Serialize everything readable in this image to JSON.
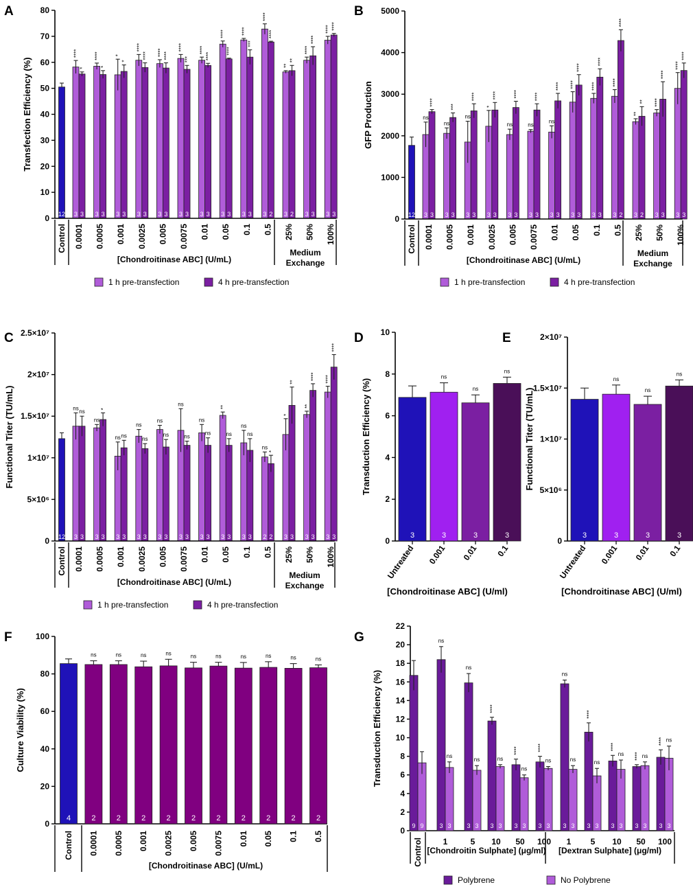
{
  "colors": {
    "control": "#1f12b8",
    "one_h": "#b05cd9",
    "four_h": "#7b1fa2",
    "polybrene": "#6a1b9a",
    "no_polybrene": "#b05cd9",
    "viability": "#800080",
    "d_bars": [
      "#1f12b8",
      "#a020f0",
      "#7b1fa2",
      "#4a0f58"
    ]
  },
  "legend_1h": "1 h pre-transfection",
  "legend_4h": "4 h pre-transfection",
  "chart_data": [
    {
      "id": "A",
      "type": "bar",
      "panel": "A",
      "ylabel": "Transfection Efficiency (%)",
      "ylim": [
        0,
        80
      ],
      "yticks": [
        {
          "v": 0,
          "l": "0"
        },
        {
          "v": 10,
          "l": "10"
        },
        {
          "v": 20,
          "l": "20"
        },
        {
          "v": 30,
          "l": "30"
        },
        {
          "v": 40,
          "l": "40"
        },
        {
          "v": 50,
          "l": "50"
        },
        {
          "v": 60,
          "l": "60"
        },
        {
          "v": 70,
          "l": "70"
        },
        {
          "v": 80,
          "l": "80"
        }
      ],
      "control": {
        "label": "Control",
        "value": 50.5,
        "err": 1.5,
        "n": "12"
      },
      "categories": [
        "0.0001",
        "0.0005",
        "0.001",
        "0.0025",
        "0.005",
        "0.0075",
        "0.01",
        "0.05",
        "0.1",
        "0.5",
        "25%",
        "50%",
        "100%"
      ],
      "series": [
        {
          "name": "1 h pre-transfection",
          "values": [
            58.2,
            58.5,
            55.2,
            60.8,
            59.5,
            61.5,
            60.8,
            67.0,
            68.6,
            72.8,
            56.3,
            60.8,
            68.5
          ],
          "errors": [
            2.5,
            1.2,
            6.0,
            2.2,
            1.5,
            1.5,
            1.2,
            1.2,
            0.6,
            2.0,
            0.5,
            1.2,
            1.5
          ],
          "n": [
            "3",
            "3",
            "3",
            "3",
            "3",
            "3",
            "3",
            "3",
            "3",
            "3",
            "3",
            "3",
            "3"
          ],
          "sig": [
            "****",
            "****",
            "*",
            "****",
            "****",
            "****",
            "****",
            "****",
            "****",
            "****",
            "**",
            "****",
            "****"
          ]
        },
        {
          "name": "4 h pre-transfection",
          "values": [
            55.5,
            55.3,
            56.5,
            58.0,
            57.8,
            57.3,
            58.8,
            61.3,
            62.0,
            67.8,
            56.8,
            62.5,
            70.5
          ],
          "errors": [
            0.8,
            1.5,
            2.5,
            1.8,
            2.0,
            1.5,
            0.8,
            0.3,
            2.8,
            0.3,
            2.0,
            3.5,
            0.6
          ],
          "n": [
            "3",
            "3",
            "3",
            "3",
            "3",
            "3",
            "3",
            "3",
            "3",
            "2",
            "2",
            "3",
            "3"
          ],
          "sig": [
            "*",
            "*",
            "*",
            "****",
            "****",
            "***",
            "****",
            "****",
            "***",
            "****",
            "**",
            "****",
            "****"
          ]
        }
      ],
      "xlabel": "[Chondroitinase ABC] (U/mL)",
      "group_label": [
        "Medium",
        "Exchange"
      ]
    },
    {
      "id": "B",
      "type": "bar",
      "panel": "B",
      "ylabel": "GFP Production",
      "ylim": [
        0,
        5000
      ],
      "yticks": [
        {
          "v": 0,
          "l": "0"
        },
        {
          "v": 1000,
          "l": "1000"
        },
        {
          "v": 2000,
          "l": "2000"
        },
        {
          "v": 3000,
          "l": "3000"
        },
        {
          "v": 4000,
          "l": "4000"
        },
        {
          "v": 5000,
          "l": "5000"
        }
      ],
      "control": {
        "label": "Control",
        "value": 1770,
        "err": 200,
        "n": "12"
      },
      "categories": [
        "0.0001",
        "0.0005",
        "0.001",
        "0.0025",
        "0.005",
        "0.0075",
        "0.01",
        "0.05",
        "0.1",
        "0.5",
        "25%",
        "50%",
        "100%"
      ],
      "series": [
        {
          "name": "1 h pre-transfection",
          "values": [
            2030,
            2060,
            1850,
            2230,
            2030,
            2110,
            2090,
            2810,
            2900,
            2950,
            2340,
            2550,
            3140
          ],
          "errors": [
            300,
            130,
            500,
            380,
            130,
            40,
            150,
            250,
            120,
            160,
            70,
            80,
            380
          ],
          "n": [
            "3",
            "3",
            "3",
            "3",
            "3",
            "3",
            "3",
            "3",
            "3",
            "3",
            "3",
            "3",
            "3"
          ],
          "sig": [
            "ns",
            "ns",
            "ns",
            "*",
            "ns",
            "ns",
            "ns",
            "****",
            "****",
            "****",
            "**",
            "****",
            "****"
          ]
        },
        {
          "name": "4 h pre-transfection",
          "values": [
            2580,
            2440,
            2600,
            2620,
            2680,
            2620,
            2840,
            3220,
            3410,
            4290,
            2470,
            2880,
            3570
          ],
          "errors": [
            50,
            110,
            170,
            180,
            150,
            150,
            180,
            250,
            200,
            260,
            230,
            420,
            180
          ],
          "n": [
            "3",
            "3",
            "3",
            "3",
            "3",
            "3",
            "3",
            "3",
            "3",
            "2",
            "2",
            "3",
            "3"
          ],
          "sig": [
            "****",
            "***",
            "****",
            "****",
            "****",
            "****",
            "****",
            "****",
            "****",
            "****",
            "**",
            "****",
            "****"
          ]
        }
      ],
      "xlabel": "[Chondroitinase ABC] (U/mL)",
      "group_label": [
        "Medium",
        "Exchange"
      ]
    },
    {
      "id": "C",
      "type": "bar",
      "panel": "C",
      "ylabel": "Functional Titer (TU/mL)",
      "ylim": [
        0,
        25000000
      ],
      "yticks": [
        {
          "v": 0,
          "l": "0"
        },
        {
          "v": 5000000,
          "l": "5×10⁶"
        },
        {
          "v": 10000000,
          "l": "1×10⁷"
        },
        {
          "v": 15000000,
          "l": "1.5×10⁷"
        },
        {
          "v": 20000000,
          "l": "2×10⁷"
        },
        {
          "v": 25000000,
          "l": "2.5×10⁷"
        }
      ],
      "control": {
        "label": "Control",
        "value": 12300000,
        "err": 700000,
        "n": "12"
      },
      "categories": [
        "0.0001",
        "0.0005",
        "0.001",
        "0.0025",
        "0.005",
        "0.0075",
        "0.01",
        "0.05",
        "0.1",
        "0.5",
        "25%",
        "50%",
        "100%"
      ],
      "series": [
        {
          "name": "1 h pre-transfection",
          "values": [
            13800000,
            13600000,
            10200000,
            12600000,
            13400000,
            13300000,
            13000000,
            15100000,
            11800000,
            10100000,
            12800000,
            15200000,
            17900000
          ],
          "errors": [
            1600000,
            400000,
            1700000,
            800000,
            500000,
            2600000,
            1000000,
            400000,
            1500000,
            600000,
            1900000,
            400000,
            700000
          ],
          "n": [
            "3",
            "3",
            "3",
            "3",
            "3",
            "3",
            "3",
            "3",
            "3",
            "2",
            "3",
            "3",
            "3"
          ],
          "sig": [
            "ns",
            "ns",
            "ns",
            "ns",
            "ns",
            "ns",
            "ns",
            "**",
            "ns",
            "ns",
            "*",
            "**",
            "****"
          ]
        },
        {
          "name": "4 h pre-transfection",
          "values": [
            13800000,
            14600000,
            11200000,
            11100000,
            11300000,
            11500000,
            11500000,
            11500000,
            10900000,
            9300000,
            16300000,
            18100000,
            20900000
          ],
          "errors": [
            1200000,
            800000,
            900000,
            600000,
            900000,
            500000,
            900000,
            800000,
            1400000,
            1000000,
            2200000,
            800000,
            1500000
          ],
          "n": [
            "3",
            "3",
            "3",
            "3",
            "3",
            "3",
            "3",
            "3",
            "3",
            "2",
            "3",
            "3",
            "3"
          ],
          "sig": [
            "ns",
            "*",
            "ns",
            "ns",
            "ns",
            "ns",
            "ns",
            "ns",
            "ns",
            "*",
            "**",
            "****",
            "****"
          ]
        }
      ],
      "xlabel": "[Chondroitinase ABC] (U/mL)",
      "group_label": [
        "Medium",
        "Exchange"
      ]
    },
    {
      "id": "D",
      "type": "bar",
      "panel": "D",
      "ylabel": "Transduction Efficiency (%)",
      "ylim": [
        0,
        10
      ],
      "yticks": [
        {
          "v": 0,
          "l": "0"
        },
        {
          "v": 2,
          "l": "2"
        },
        {
          "v": 4,
          "l": "4"
        },
        {
          "v": 6,
          "l": "6"
        },
        {
          "v": 8,
          "l": "8"
        },
        {
          "v": 10,
          "l": "10"
        }
      ],
      "categories": [
        "Untreated",
        "0.001",
        "0.01",
        "0.1"
      ],
      "values": [
        6.88,
        7.13,
        6.62,
        7.55
      ],
      "errors": [
        0.55,
        0.45,
        0.38,
        0.3
      ],
      "n": [
        "3",
        "3",
        "3",
        "3"
      ],
      "sig": [
        "",
        "ns",
        "ns",
        "ns"
      ],
      "xlabel": "[Chondroitinase ABC] (U/ml)"
    },
    {
      "id": "E",
      "type": "bar",
      "panel": "E",
      "ylabel": "Functional Titer (TU/mL)",
      "ylim": [
        0,
        20000000
      ],
      "yticks": [
        {
          "v": 0,
          "l": "0"
        },
        {
          "v": 5000000,
          "l": "5×10⁶"
        },
        {
          "v": 10000000,
          "l": "1×10⁷"
        },
        {
          "v": 15000000,
          "l": "1.5×10⁷"
        },
        {
          "v": 20000000,
          "l": "2×10⁷"
        }
      ],
      "categories": [
        "Untreated",
        "0.001",
        "0.01",
        "0.1"
      ],
      "values": [
        13900000,
        14400000,
        13400000,
        15200000
      ],
      "errors": [
        1100000,
        900000,
        800000,
        600000
      ],
      "n": [
        "3",
        "3",
        "3",
        "3"
      ],
      "sig": [
        "",
        "ns",
        "ns",
        "ns"
      ],
      "xlabel": "[Chondroitinase ABC] (U/ml)"
    },
    {
      "id": "F",
      "type": "bar",
      "panel": "F",
      "ylabel": "Culture Viability (%)",
      "ylim": [
        0,
        100
      ],
      "yticks": [
        {
          "v": 0,
          "l": "0"
        },
        {
          "v": 20,
          "l": "20"
        },
        {
          "v": 40,
          "l": "40"
        },
        {
          "v": 60,
          "l": "60"
        },
        {
          "v": 80,
          "l": "80"
        },
        {
          "v": 100,
          "l": "100"
        }
      ],
      "categories": [
        "Control",
        "0.0001",
        "0.0005",
        "0.001",
        "0.0025",
        "0.005",
        "0.0075",
        "0.01",
        "0.05",
        "0.1",
        "0.5"
      ],
      "values": [
        85.5,
        85.0,
        85.0,
        83.8,
        84.3,
        83.2,
        84.2,
        83.1,
        83.5,
        83.0,
        83.3
      ],
      "errors": [
        2.5,
        2.0,
        2.0,
        3.0,
        3.5,
        3.0,
        2.0,
        3.0,
        3.0,
        2.5,
        1.5
      ],
      "n": [
        "4",
        "2",
        "2",
        "2",
        "2",
        "2",
        "2",
        "2",
        "2",
        "2",
        "2"
      ],
      "sig": [
        "",
        "ns",
        "ns",
        "ns",
        "ns",
        "ns",
        "ns",
        "ns",
        "ns",
        "ns",
        "ns"
      ],
      "xlabel": "[Chondroitinase ABC] (U/mL)"
    },
    {
      "id": "G",
      "type": "bar",
      "panel": "G",
      "ylabel": "Transduction Efficiency (%)",
      "ylim": [
        0,
        22
      ],
      "yticks": [
        {
          "v": 0,
          "l": "0"
        },
        {
          "v": 2,
          "l": "2"
        },
        {
          "v": 4,
          "l": "4"
        },
        {
          "v": 6,
          "l": "6"
        },
        {
          "v": 8,
          "l": "8"
        },
        {
          "v": 10,
          "l": "10"
        },
        {
          "v": 12,
          "l": "12"
        },
        {
          "v": 14,
          "l": "14"
        },
        {
          "v": 16,
          "l": "16"
        },
        {
          "v": 18,
          "l": "18"
        },
        {
          "v": 20,
          "l": "20"
        },
        {
          "v": 22,
          "l": "22"
        }
      ],
      "categories": [
        "Control",
        "1",
        "5",
        "10",
        "50",
        "100",
        "1",
        "5",
        "10",
        "50",
        "100"
      ],
      "series": [
        {
          "name": "Polybrene",
          "values": [
            16.7,
            18.4,
            15.9,
            11.8,
            7.1,
            7.4,
            15.8,
            10.6,
            7.5,
            6.9,
            7.9
          ],
          "errors": [
            1.6,
            1.4,
            1.0,
            0.4,
            0.6,
            0.6,
            0.4,
            1.0,
            0.6,
            0.2,
            0.8
          ],
          "n": [
            "9",
            "3",
            "3",
            "3",
            "3",
            "3",
            "3",
            "3",
            "3",
            "3",
            "3"
          ],
          "sig": [
            "",
            "ns",
            "ns",
            "****",
            "****",
            "****",
            "ns",
            "****",
            "****",
            "****",
            "****"
          ]
        },
        {
          "name": "No Polybrene",
          "values": [
            7.3,
            6.8,
            6.5,
            6.9,
            5.7,
            6.7,
            6.6,
            5.9,
            6.6,
            7.0,
            7.8
          ],
          "errors": [
            1.2,
            0.6,
            0.5,
            0.2,
            0.3,
            0.2,
            0.4,
            0.8,
            1.0,
            0.4,
            1.3
          ],
          "n": [
            "9",
            "3",
            "3",
            "3",
            "3",
            "3",
            "3",
            "3",
            "3",
            "3",
            "3"
          ],
          "sig": [
            "",
            "ns",
            "ns",
            "ns",
            "ns",
            "ns",
            "ns",
            "ns",
            "ns",
            "ns",
            "ns"
          ]
        }
      ],
      "group_labels": [
        "[Chondroitin Sulphate] (μg/ml)",
        "[Dextran Sulphate] (μg/ml)"
      ]
    }
  ]
}
